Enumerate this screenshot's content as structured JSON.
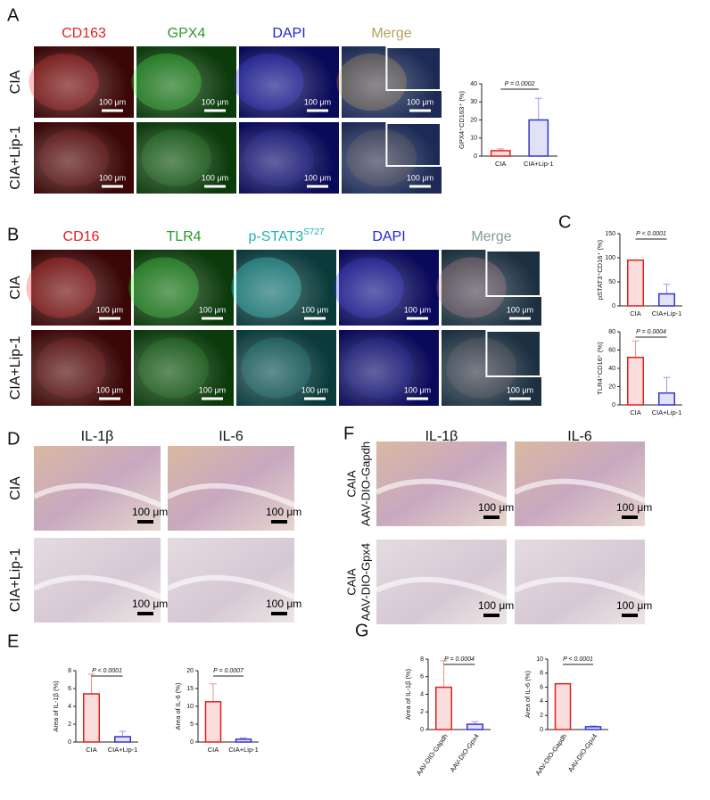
{
  "panels": [
    {
      "letter": "A",
      "columns": [
        "CD163",
        "GPX4",
        "DAPI",
        "Merge"
      ],
      "header_colors": [
        "#e0201e",
        "#2a9a2a",
        "#2323d8",
        "#b8a060"
      ],
      "rows": [
        [
          "CIA"
        ],
        [
          "CIA+Lip-1"
        ]
      ],
      "scale_bar": "100 μm"
    },
    {
      "letter": "B",
      "columns": [
        "CD16",
        "TLR4",
        {
          "text": "p-STAT3",
          "sup": "S727"
        },
        "DAPI",
        "Merge"
      ],
      "header_colors": [
        "#e0201e",
        "#2a9a2a",
        "#1fb0b0",
        "#2323d8",
        "#80a090"
      ],
      "rows": [
        [
          "CIA"
        ],
        [
          "CIA+Lip-1"
        ]
      ],
      "scale_bar": "100 μm"
    },
    {
      "letter": "D",
      "columns": [
        "IL-1β",
        "IL-6"
      ],
      "header_colors": [
        "#111111",
        "#111111"
      ],
      "rows": [
        [
          "CIA"
        ],
        [
          "CIA+Lip-1"
        ]
      ],
      "scale_bar": "100 μm"
    },
    {
      "letter": "F",
      "columns": [
        "IL-1β",
        "IL-6"
      ],
      "header_colors": [
        "#111111",
        "#111111"
      ],
      "rows": [
        [
          "CAIA",
          "AAV-DIO-Gapdh"
        ],
        [
          "CAIA",
          "AAV-DIO-Gpx4"
        ]
      ],
      "scale_bar": "100 μm"
    }
  ],
  "chart_letters": [
    "C",
    "E",
    "G"
  ],
  "chart_data": [
    {
      "type": "bar",
      "y_label": "GPX4⁺CD163⁺ (%)",
      "categories": [
        "CIA",
        "CIA+Lip-1"
      ],
      "values": [
        3,
        20
      ],
      "errors": [
        1,
        12
      ],
      "colors": [
        "#e0201e",
        "#3535d0"
      ],
      "annotation": "P = 0.0002",
      "ylim": [
        0,
        40
      ],
      "yticks": [
        0,
        10,
        20,
        30,
        40
      ]
    },
    {
      "type": "bar",
      "y_label": "pSTAT3⁺CD16⁺ (%)",
      "categories": [
        "CIA",
        "CIA+Lip-1"
      ],
      "values": [
        95,
        25
      ],
      "errors": [
        0,
        20
      ],
      "colors": [
        "#e0201e",
        "#3535d0"
      ],
      "annotation": "P < 0.0001",
      "ylim": [
        0,
        150
      ],
      "yticks": [
        0,
        50,
        100,
        150
      ]
    },
    {
      "type": "bar",
      "y_label": "TLR4⁺CD16⁺ (%)",
      "categories": [
        "CIA",
        "CIA+Lip-1"
      ],
      "values": [
        52,
        13
      ],
      "errors": [
        18,
        17
      ],
      "colors": [
        "#e0201e",
        "#3535d0"
      ],
      "annotation": "P = 0.0004",
      "ylim": [
        0,
        80
      ],
      "yticks": [
        0,
        20,
        40,
        60,
        80
      ]
    },
    {
      "type": "bar",
      "y_label": "Area of IL-1β (%)",
      "categories": [
        "CIA",
        "CIA+Lip-1"
      ],
      "values": [
        5.4,
        0.6
      ],
      "errors": [
        2.2,
        0.6
      ],
      "colors": [
        "#e0201e",
        "#3535d0"
      ],
      "annotation": "P < 0.0001",
      "ylim": [
        0,
        8
      ],
      "yticks": [
        0,
        2,
        4,
        6,
        8
      ]
    },
    {
      "type": "bar",
      "y_label": "Area of IL-6 (%)",
      "categories": [
        "CIA",
        "CIA+Lip-1"
      ],
      "values": [
        11.3,
        0.8
      ],
      "errors": [
        5,
        0.4
      ],
      "colors": [
        "#e0201e",
        "#3535d0"
      ],
      "annotation": "P = 0.0007",
      "ylim": [
        0,
        20
      ],
      "yticks": [
        0,
        5,
        10,
        15,
        20
      ]
    },
    {
      "type": "bar",
      "y_label": "Area of IL-1β (%)",
      "categories": [
        "AAV-DIO-Gapdh",
        "AAV-DIO-Gpx4"
      ],
      "values": [
        4.8,
        0.6
      ],
      "errors": [
        3,
        0.3
      ],
      "colors": [
        "#e0201e",
        "#3535d0"
      ],
      "annotation": "P = 0.0004",
      "ylim": [
        0,
        8
      ],
      "yticks": [
        0,
        2,
        4,
        6,
        8
      ]
    },
    {
      "type": "bar",
      "y_label": "Area of IL-6 (%)",
      "categories": [
        "AAV-DIO-Gapdh",
        "AAV-DIO-Gpx4"
      ],
      "values": [
        6.5,
        0.4
      ],
      "errors": [
        0,
        0.1
      ],
      "colors": [
        "#e0201e",
        "#3535d0"
      ],
      "annotation": "P < 0.0001",
      "ylim": [
        0,
        10
      ],
      "yticks": [
        0,
        2,
        4,
        6,
        8,
        10
      ]
    }
  ]
}
